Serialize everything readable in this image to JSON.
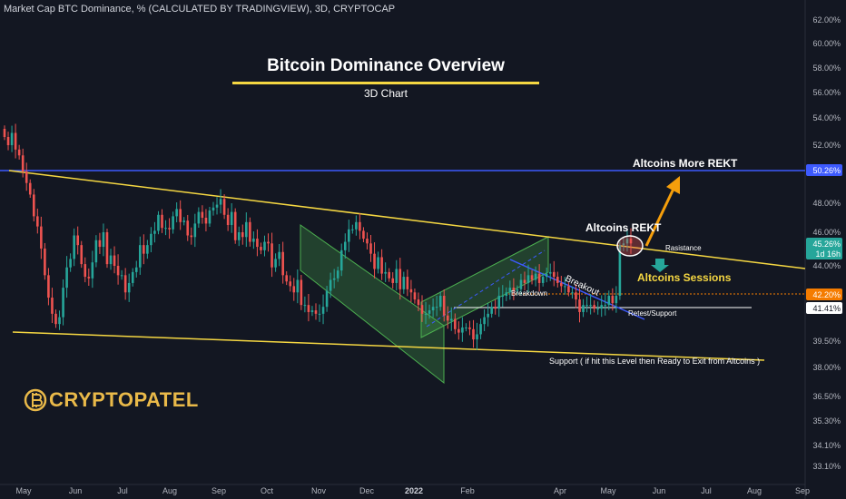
{
  "header": {
    "symbol": "Market Cap BTC Dominance, % (CALCULATED BY TRADINGVIEW), 3D, CRYPTOCAP"
  },
  "title": "Bitcoin Dominance Overview",
  "subtitle": "3D Chart",
  "brand": {
    "name": "CRYPTOPATEL",
    "icon": "bitcoin-coin-icon"
  },
  "colors": {
    "background": "#131722",
    "up": "#26a69a",
    "down": "#ef5350",
    "trendline": "#f5d742",
    "resistance_line": "#3d5afe",
    "channel_fill": "rgba(76,175,80,0.28)",
    "arrow": "#f59e0b",
    "brand": "#e9b949",
    "price_tag_orange": "#f57c00"
  },
  "chart_data": {
    "type": "candlestick",
    "title": "Bitcoin Dominance Overview",
    "subtitle": "3D Chart",
    "x_ticks": [
      "May",
      "Jun",
      "Jul",
      "Aug",
      "Sep",
      "Oct",
      "Nov",
      "Dec",
      "2022",
      "Feb",
      "Apr",
      "May",
      "Jun",
      "Jul",
      "Aug",
      "Sep"
    ],
    "y_ticks": [
      "62.00%",
      "60.00%",
      "58.00%",
      "56.00%",
      "54.00%",
      "52.00%",
      "48.00%",
      "46.00%",
      "44.00%",
      "39.50%",
      "38.00%",
      "36.50%",
      "35.30%",
      "34.10%",
      "33.10%"
    ],
    "ylim": [
      33.0,
      62.5
    ],
    "price_tags": [
      {
        "label": "50.26%",
        "value": 50.26,
        "color": "#3d5afe"
      },
      {
        "label": "45.26%",
        "sub": "1d 16h",
        "value": 45.26,
        "color": "#26a69a"
      },
      {
        "label": "42.20%",
        "value": 42.2,
        "color": "#f57c00"
      },
      {
        "label": "41.41%",
        "value": 41.41,
        "color": "#ffffff"
      }
    ],
    "candles_close": [
      52.6,
      52.0,
      52.9,
      51.7,
      51.3,
      50.2,
      49.4,
      48.6,
      47.1,
      46.4,
      45.0,
      43.4,
      42.0,
      41.1,
      40.5,
      40.9,
      42.6,
      43.9,
      44.4,
      45.8,
      45.2,
      44.1,
      43.3,
      43.2,
      44.2,
      45.5,
      45.1,
      46.0,
      44.1,
      44.6,
      44.0,
      43.4,
      43.4,
      42.3,
      42.9,
      43.6,
      43.9,
      45.2,
      44.7,
      45.2,
      45.9,
      46.1,
      47.2,
      46.3,
      46.3,
      46.2,
      47.1,
      47.6,
      46.7,
      46.8,
      45.8,
      45.7,
      46.6,
      47.4,
      47.0,
      46.6,
      47.5,
      47.7,
      47.9,
      48.3,
      47.2,
      46.5,
      47.4,
      45.5,
      46.0,
      45.7,
      46.7,
      45.4,
      45.6,
      45.1,
      44.9,
      45.4,
      45.3,
      43.9,
      44.4,
      44.8,
      43.4,
      43.0,
      42.7,
      42.3,
      43.1,
      41.6,
      41.6,
      41.2,
      41.3,
      41.1,
      41.1,
      41.5,
      42.4,
      43.1,
      43.2,
      43.7,
      44.9,
      45.4,
      46.2,
      46.2,
      46.7,
      46.1,
      45.6,
      45.3,
      44.7,
      43.8,
      44.5,
      43.5,
      43.6,
      43.2,
      42.9,
      43.8,
      42.5,
      43.3,
      42.5,
      42.3,
      41.9,
      41.6,
      41.1,
      41.1,
      41.3,
      41.5,
      41.5,
      42.1,
      41.0,
      40.7,
      40.8,
      40.2,
      40.0,
      40.3,
      40.3,
      40.2,
      39.6,
      39.9,
      40.5,
      40.9,
      41.1,
      41.5,
      41.4,
      42.1,
      42.1,
      42.3,
      42.6,
      42.4,
      42.5,
      43.1,
      42.9,
      43.4,
      43.1,
      43.5,
      42.9,
      43.3,
      43.5,
      43.6,
      43.3,
      42.9,
      42.7,
      42.7,
      42.3,
      42.3,
      41.9,
      41.2,
      41.6,
      41.6,
      41.6,
      41.4,
      41.4,
      41.6,
      41.6,
      42.1,
      41.7,
      42.1,
      45.2,
      45.3,
      45.6,
      45.3
    ],
    "annotations": [
      "Altcoins More REKT",
      "Altcoins REKT",
      "Rasistance",
      "Altcoins Sessions",
      "Breakdown",
      "Breakout",
      "Retest/Support",
      "Support  ( if hit this Level then Ready to Exit from Altcoins )"
    ],
    "levels": {
      "resistance": 50.26,
      "current": 45.26,
      "breakdown": 42.2,
      "retest": 41.41
    }
  }
}
